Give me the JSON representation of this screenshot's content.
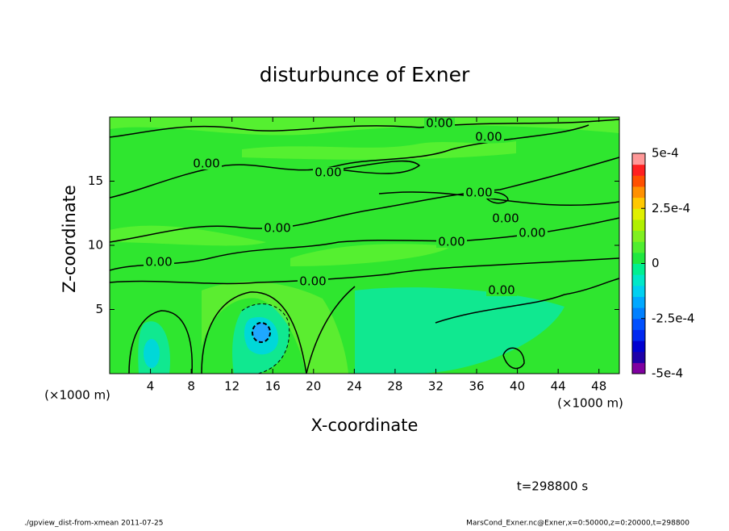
{
  "chart_data": {
    "type": "contour",
    "title": "disturbunce of Exner",
    "xlabel": "X-coordinate",
    "ylabel": "Z-coordinate",
    "x_unit": "(×1000 m)",
    "xlim": [
      0,
      50
    ],
    "xticks": [
      4,
      8,
      12,
      16,
      20,
      24,
      28,
      32,
      36,
      40,
      44,
      48
    ],
    "ylim": [
      0,
      20
    ],
    "yticks": [
      5,
      10,
      15
    ],
    "contour_labels": [
      "0.00",
      "0.00",
      "0.00",
      "0.00",
      "0.00",
      "0.00",
      "0.00",
      "0.00",
      "0.00",
      "0.00",
      "0.00",
      "0.00"
    ],
    "colorbar": {
      "lim": [
        -0.0005,
        0.0005
      ],
      "ticks": [
        {
          "value": 0.0005,
          "label": "5e-4"
        },
        {
          "value": 0.00025,
          "label": "2.5e-4"
        },
        0,
        {
          "value": -0.00025,
          "label": "-2.5e-4"
        },
        {
          "value": -0.0005,
          "label": "-5e-4"
        }
      ],
      "colors": [
        "#7f00a0",
        "#1e00a8",
        "#0000d0",
        "#0028f0",
        "#0050ff",
        "#0080ff",
        "#00a8ff",
        "#00d0f0",
        "#00e8c8",
        "#00f090",
        "#20e840",
        "#50ee30",
        "#80f020",
        "#b0f000",
        "#e0f000",
        "#ffc800",
        "#ff9000",
        "#ff5000",
        "#ff2020",
        "#ff9898"
      ]
    },
    "time_label": "t=298800 s",
    "footer_left": "./gpview_dist-from-xmean  2011-07-25",
    "footer_right": "MarsCond_Exner.nc@Exner,x=0:50000,z=0:20000,t=298800"
  }
}
